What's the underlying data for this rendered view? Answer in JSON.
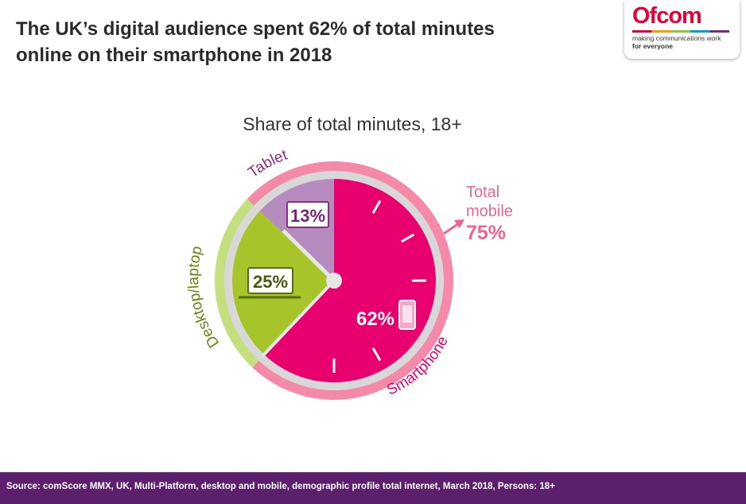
{
  "header": {
    "title_line1": "The UK’s digital audience spent 62% of total minutes",
    "title_line2": "online on their smartphone in 2018"
  },
  "logo": {
    "wordmark": "Ofcom",
    "tagline": "making communications work",
    "tagline2": "for everyone"
  },
  "chart_data": {
    "type": "pie",
    "title": "Share of total minutes, 18+",
    "unit": "%",
    "slices": [
      {
        "name": "Smartphone",
        "value": 62,
        "label": "62%",
        "color": "#e8006f"
      },
      {
        "name": "Desktop/laptop",
        "value": 25,
        "label": "25%",
        "color": "#a7c52b"
      },
      {
        "name": "Tablet",
        "value": 13,
        "label": "13%",
        "color": "#b68bbd"
      }
    ],
    "outer_ring": [
      {
        "name": "Smartphone",
        "color": "#f48aa8"
      },
      {
        "name": "Desktop/laptop",
        "color": "#c4e07e"
      },
      {
        "name": "Tablet",
        "color": "#f48aa8"
      }
    ],
    "annotation": {
      "line1": "Total",
      "line2": "mobile",
      "value": "75%",
      "color": "#f06292"
    }
  },
  "footer": {
    "source": "Source: comScore MMX, UK, Multi-Platform, desktop and mobile, demographic profile total internet, March 2018, Persons: 18+"
  }
}
